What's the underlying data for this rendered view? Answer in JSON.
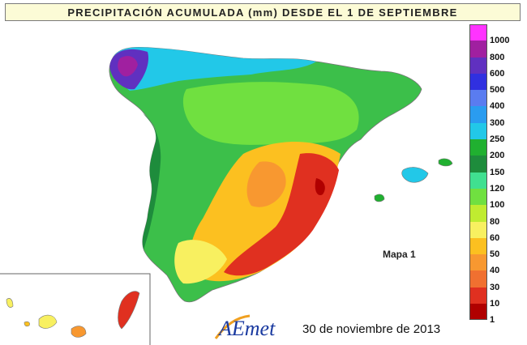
{
  "title": "PRECIPITACIÓN ACUMULADA (mm) DESDE EL 1 DE SEPTIEMBRE",
  "map_label": "Mapa 1",
  "date": "30 de noviembre de 2013",
  "logo_text": "AEmet",
  "legend": {
    "unit": "mm",
    "classes": [
      {
        "label": "1000",
        "color": "#ff33ff"
      },
      {
        "label": "800",
        "color": "#a020a0"
      },
      {
        "label": "600",
        "color": "#6030c0"
      },
      {
        "label": "500",
        "color": "#3030e0"
      },
      {
        "label": "400",
        "color": "#5a7cf0"
      },
      {
        "label": "300",
        "color": "#2a9cf0"
      },
      {
        "label": "250",
        "color": "#22c8e8"
      },
      {
        "label": "200",
        "color": "#20b030"
      },
      {
        "label": "150",
        "color": "#1e8c3c"
      },
      {
        "label": "120",
        "color": "#40e090"
      },
      {
        "label": "100",
        "color": "#70e040"
      },
      {
        "label": "80",
        "color": "#c0ec30"
      },
      {
        "label": "60",
        "color": "#f8f060"
      },
      {
        "label": "50",
        "color": "#fcc020"
      },
      {
        "label": "40",
        "color": "#f89830"
      },
      {
        "label": "30",
        "color": "#f07030"
      },
      {
        "label": "10",
        "color": "#e03020"
      },
      {
        "label": "1",
        "color": "#b00000"
      }
    ]
  }
}
